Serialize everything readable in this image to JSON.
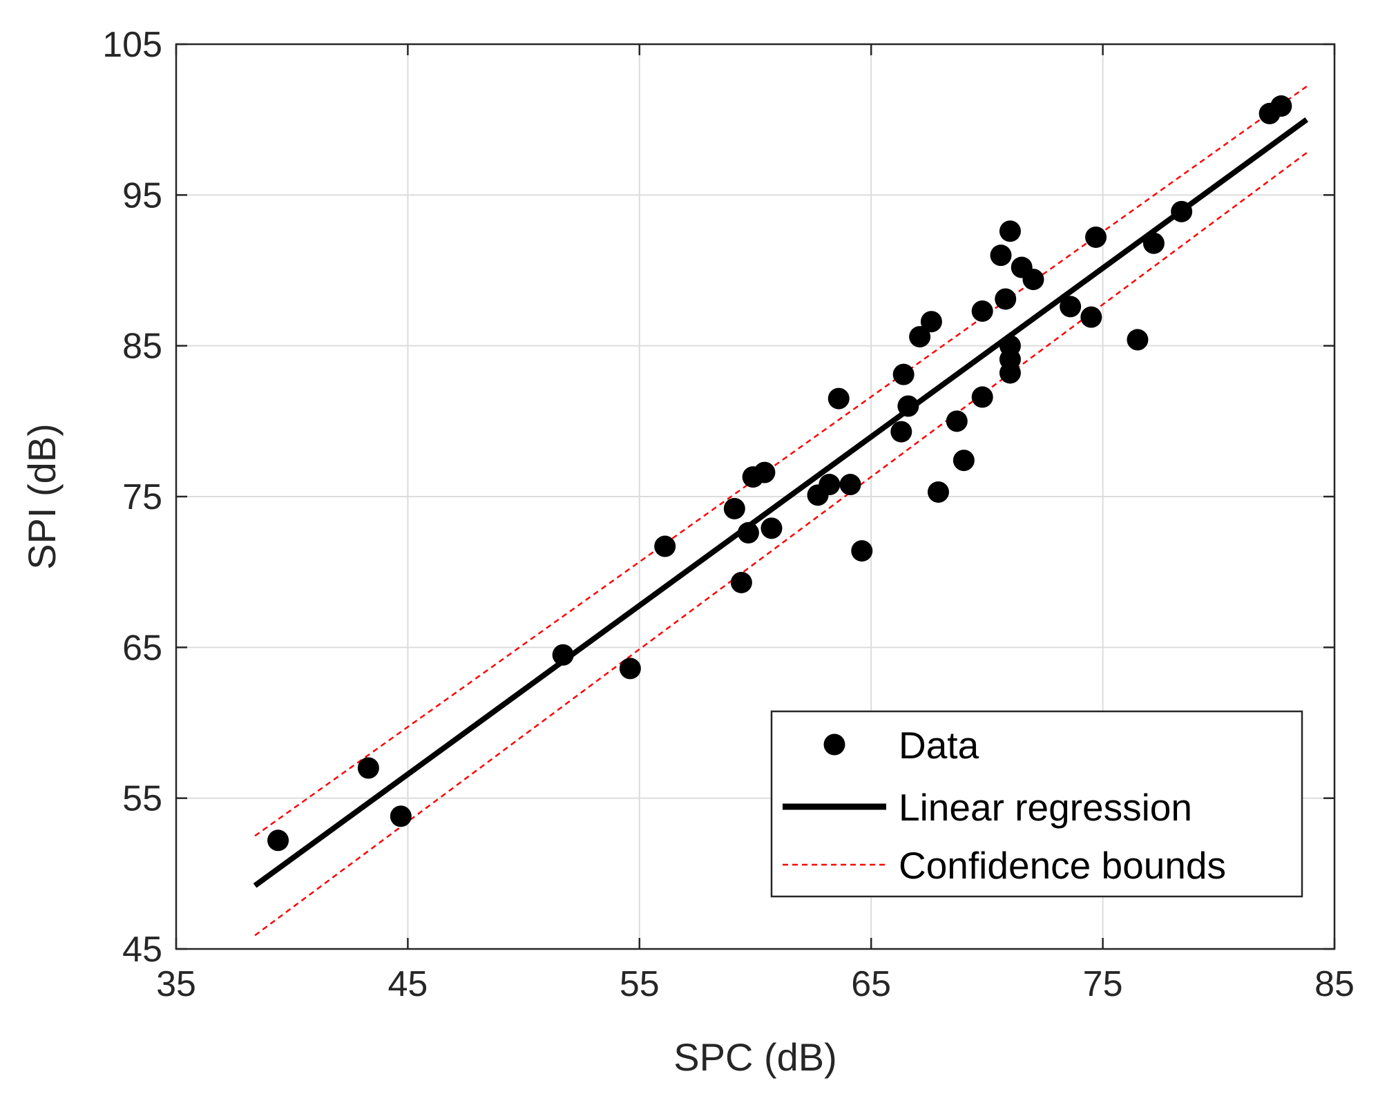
{
  "chart_data": {
    "type": "scatter",
    "title": "",
    "xlabel": "SPC (dB)",
    "ylabel": "SPI (dB)",
    "xlim": [
      35,
      85
    ],
    "ylim": [
      45,
      105
    ],
    "xticks": [
      35,
      45,
      55,
      65,
      75,
      85
    ],
    "yticks": [
      45,
      55,
      65,
      75,
      85,
      95,
      105
    ],
    "xtick_labels": [
      "35",
      "45",
      "55",
      "65",
      "75",
      "85"
    ],
    "ytick_labels": [
      "45",
      "55",
      "65",
      "75",
      "85",
      "95",
      "105"
    ],
    "grid": true,
    "legend_position": "bottom-right",
    "colors": {
      "data": "#000000",
      "regression": "#000000",
      "confidence": "#ff0000",
      "grid": "#dcdcdc",
      "axis": "#262626"
    },
    "series": [
      {
        "name": "Data",
        "kind": "scatter",
        "x": [
          39.4,
          43.3,
          44.7,
          51.7,
          54.6,
          56.1,
          59.1,
          59.4,
          59.7,
          59.9,
          60.4,
          60.7,
          62.7,
          63.2,
          63.6,
          64.1,
          64.6,
          66.3,
          66.4,
          66.6,
          67.1,
          67.6,
          67.9,
          68.7,
          69.0,
          69.8,
          69.8,
          70.6,
          70.8,
          71.0,
          71.0,
          71.0,
          71.0,
          71.5,
          72.0,
          73.6,
          74.5,
          74.7,
          76.5,
          77.2,
          78.4,
          82.2,
          82.7
        ],
        "y": [
          52.2,
          57.0,
          53.8,
          64.5,
          63.6,
          71.7,
          74.2,
          69.3,
          72.6,
          76.3,
          76.6,
          72.9,
          75.1,
          75.8,
          81.5,
          75.8,
          71.4,
          79.3,
          83.1,
          81.0,
          85.6,
          86.6,
          75.3,
          80.0,
          77.4,
          87.3,
          81.6,
          91.0,
          88.1,
          92.6,
          85.0,
          84.1,
          83.2,
          90.2,
          89.4,
          87.6,
          86.9,
          92.2,
          85.4,
          91.8,
          93.9,
          100.4,
          100.9
        ]
      },
      {
        "name": "Linear regression",
        "kind": "line",
        "x": [
          38.4,
          83.8
        ],
        "y": [
          49.2,
          100.0
        ]
      },
      {
        "name": "Confidence bounds",
        "kind": "dashed-line",
        "upper": {
          "x": [
            38.4,
            83.8
          ],
          "y": [
            52.5,
            102.2
          ]
        },
        "lower": {
          "x": [
            38.4,
            83.8
          ],
          "y": [
            45.9,
            97.8
          ]
        }
      }
    ]
  }
}
